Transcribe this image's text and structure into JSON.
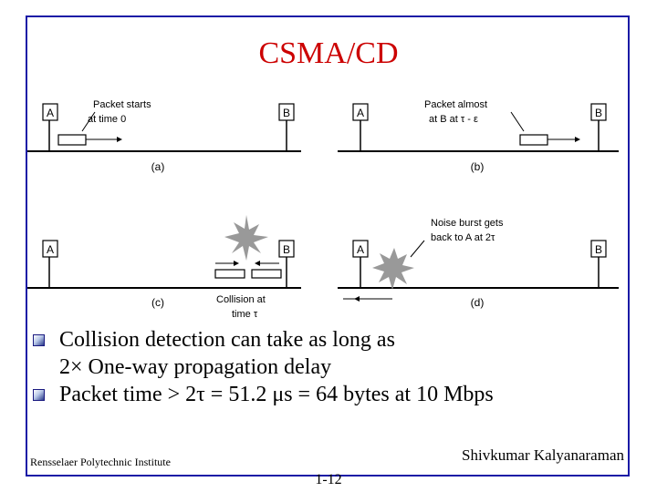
{
  "title": "CSMA/CD",
  "diagram": {
    "panels": [
      {
        "label": "(a)",
        "station_a": "A",
        "station_b": "B",
        "annotation": [
          "Packet starts",
          "at time 0"
        ]
      },
      {
        "label": "(b)",
        "station_a": "A",
        "station_b": "B",
        "annotation": [
          "Packet almost",
          "at B at τ - ε"
        ]
      },
      {
        "label": "(c)",
        "station_a": "A",
        "station_b": "B",
        "annotation": [
          "Collision at",
          "time τ"
        ]
      },
      {
        "label": "(d)",
        "station_a": "A",
        "station_b": "B",
        "annotation": [
          "Noise burst gets",
          "back to A at 2τ"
        ]
      }
    ]
  },
  "bullets": [
    {
      "line1": "Collision detection can take as long as",
      "line2": "2× One-way propagation delay"
    },
    {
      "line1": "Packet time > 2τ = 51.2 μs = 64 bytes at 10 Mbps"
    }
  ],
  "footer": {
    "institute": "Rensselaer Polytechnic Institute",
    "author": "Shivkumar Kalyanaraman",
    "page": "1-12"
  },
  "colors": {
    "title": "#cc0000",
    "frame": "#1a1aa6",
    "burst": "#999999"
  }
}
